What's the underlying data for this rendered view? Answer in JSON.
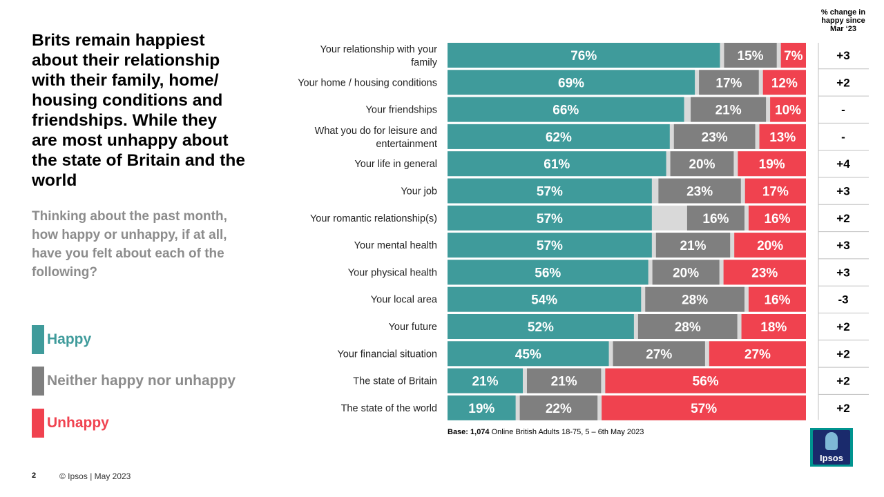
{
  "title": "Brits remain happiest about their relationship with their family, home/ housing conditions and friendships. While they are most unhappy about the state of Britain and the world",
  "subtitle": "Thinking about the past month, how happy or unhappy, if at all, have you felt about each of the following?",
  "legend": {
    "happy": "Happy",
    "neither": "Neither happy nor unhappy",
    "unhappy": "Unhappy"
  },
  "colors": {
    "happy": "#3f9b9b",
    "neither": "#7f7f7f",
    "unhappy": "#f0424f",
    "dontknow": "#d9d9d9",
    "happy_text": "#3f9b9b",
    "neither_text": "#8c8c8c",
    "unhappy_text": "#f0424f"
  },
  "change_header": "% change in happy since Mar ‘23",
  "base_note": {
    "label": "Base: 1,074",
    "text": " Online British Adults 18-75, 5 – 6th May 2023"
  },
  "footer": {
    "page_number": "2",
    "copyright": "© Ipsos | May 2023"
  },
  "logo_text": "Ipsos",
  "chart_data": {
    "type": "bar",
    "orientation": "horizontal-stacked",
    "xlim": [
      0,
      100
    ],
    "categories": [
      [
        "Your relationship with your",
        "family"
      ],
      [
        "Your home / housing conditions"
      ],
      [
        "Your friendships"
      ],
      [
        "What you do for leisure and",
        "entertainment"
      ],
      [
        "Your life in general"
      ],
      [
        "Your job"
      ],
      [
        "Your romantic relationship(s)"
      ],
      [
        "Your mental health"
      ],
      [
        "Your physical health"
      ],
      [
        "Your local area"
      ],
      [
        "Your future"
      ],
      [
        "Your financial situation"
      ],
      [
        "The state of Britain"
      ],
      [
        "The state of the world"
      ]
    ],
    "series": [
      {
        "name": "Happy",
        "values": [
          76,
          69,
          66,
          62,
          61,
          57,
          57,
          57,
          56,
          54,
          52,
          45,
          21,
          19
        ]
      },
      {
        "name": "Neither happy nor unhappy",
        "values": [
          15,
          17,
          21,
          23,
          20,
          23,
          16,
          21,
          20,
          28,
          28,
          27,
          21,
          22
        ]
      },
      {
        "name": "Unhappy",
        "values": [
          7,
          12,
          10,
          13,
          19,
          17,
          16,
          20,
          23,
          16,
          18,
          27,
          56,
          57
        ]
      }
    ],
    "labels": {
      "happy": [
        "76%",
        "69%",
        "66%",
        "62%",
        "61%",
        "57%",
        "57%",
        "57%",
        "56%",
        "54%",
        "52%",
        "45%",
        "21%",
        "19%"
      ],
      "neither": [
        "15%",
        "17%",
        "21%",
        "23%",
        "20%",
        "23%",
        "16%",
        "21%",
        "20%",
        "28%",
        "28%",
        "27%",
        "21%",
        "22%"
      ],
      "unhappy": [
        "7%",
        "12%",
        "10%",
        "13%",
        "19%",
        "17%",
        "16%",
        "20%",
        "23%",
        "16%",
        "18%",
        "27%",
        "56%",
        "57%"
      ]
    },
    "change_since_mar23": [
      "+3",
      "+2",
      "-",
      "-",
      "+4",
      "+3",
      "+2",
      "+3",
      "+3",
      "-3",
      "+2",
      "+2",
      "+2",
      "+2"
    ]
  }
}
